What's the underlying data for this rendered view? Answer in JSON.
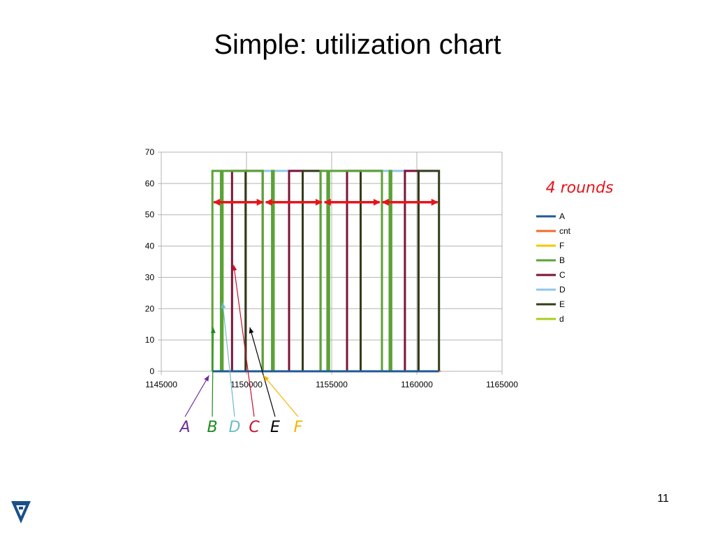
{
  "slide": {
    "title": "Simple: utilization chart",
    "number": "11",
    "rounds_label": "4 rounds"
  },
  "chart_data": {
    "type": "line",
    "title": "",
    "xlabel": "",
    "ylabel": "",
    "xlim": [
      1145000,
      1165000
    ],
    "ylim": [
      0,
      70
    ],
    "x_ticks": [
      1145000,
      1150000,
      1155000,
      1160000,
      1165000
    ],
    "y_ticks": [
      0,
      10,
      20,
      30,
      40,
      50,
      60,
      70
    ],
    "grid": true,
    "legend_position": "right",
    "series": [
      {
        "name": "A",
        "color": "#1f5a96",
        "width": 3,
        "x": [
          1148000,
          1161300
        ],
        "y": [
          0,
          0
        ]
      },
      {
        "name": "cnt",
        "color": "#f26b2a",
        "width": 2,
        "x": [
          1161300,
          1161400
        ],
        "y": [
          0,
          0
        ]
      },
      {
        "name": "F",
        "color": "#f5c800",
        "width": 2,
        "x": [
          1148000,
          1161300
        ],
        "y": [
          0,
          0
        ]
      },
      {
        "name": "B",
        "color": "#5ba236",
        "width": 3,
        "x": [
          1148000,
          1148000,
          1148500,
          1148500,
          1148600,
          1148600,
          1150950,
          1150950,
          1151500,
          1151500,
          1151600,
          1151600,
          1154350,
          1154350,
          1154750,
          1154750,
          1154850,
          1154850,
          1157950,
          1157950,
          1158400,
          1158400,
          1158500,
          1158500,
          1161300
        ],
        "y": [
          0,
          64,
          64,
          0,
          0,
          64,
          64,
          0,
          0,
          64,
          64,
          0,
          0,
          64,
          64,
          0,
          0,
          64,
          64,
          0,
          0,
          64,
          64,
          0,
          0
        ]
      },
      {
        "name": "C",
        "color": "#7a1436",
        "width": 3,
        "x": [
          1148600,
          1149150,
          1149150,
          1149950,
          1149950,
          1150050,
          1150050,
          1152500,
          1152500,
          1153300,
          1153300,
          1153400,
          1153400,
          1155900,
          1155900,
          1156700,
          1156700,
          1156800,
          1156800,
          1159300,
          1159300,
          1160100,
          1160100,
          1160200,
          1160200,
          1161300
        ],
        "y": [
          0,
          0,
          64,
          64,
          0,
          0,
          0,
          0,
          64,
          64,
          0,
          0,
          0,
          0,
          64,
          64,
          0,
          0,
          0,
          0,
          64,
          64,
          0,
          0,
          0,
          0
        ]
      },
      {
        "name": "D",
        "color": "#8fc7ea",
        "width": 3,
        "x": [
          1148000,
          1161300
        ],
        "y": [
          64,
          64
        ]
      },
      {
        "name": "E",
        "color": "#333d1a",
        "width": 3,
        "x": [
          1149950,
          1149950,
          1150950,
          1150950,
          1153300,
          1153300,
          1154350,
          1154350,
          1156700,
          1156700,
          1157950,
          1157950,
          1160100,
          1160100,
          1161300,
          1161300
        ],
        "y": [
          0,
          64,
          64,
          0,
          0,
          64,
          64,
          0,
          0,
          64,
          64,
          0,
          0,
          64,
          64,
          0
        ]
      },
      {
        "name": "d",
        "color": "#a8cc1e",
        "width": 2,
        "x": [],
        "y": []
      }
    ],
    "rounds": [
      {
        "x1": 1148000,
        "x2": 1151050
      },
      {
        "x1": 1151050,
        "x2": 1154500
      },
      {
        "x1": 1154500,
        "x2": 1157900
      },
      {
        "x1": 1157900,
        "x2": 1161300
      }
    ],
    "rounds_y": 54,
    "annotations": [
      {
        "label": "A",
        "color": "#6a2c96",
        "x": 1147800,
        "y": 0
      },
      {
        "label": "B",
        "color": "#1c8a1c",
        "x": 1148050,
        "y": 14
      },
      {
        "label": "D",
        "color": "#6bbcc8",
        "x": 1148600,
        "y": 22
      },
      {
        "label": "C",
        "color": "#c8102e",
        "x": 1149250,
        "y": 34
      },
      {
        "label": "E",
        "color": "#000000",
        "x": 1150200,
        "y": 14
      },
      {
        "label": "F",
        "color": "#f5b400",
        "x": 1151000,
        "y": 0
      }
    ]
  }
}
